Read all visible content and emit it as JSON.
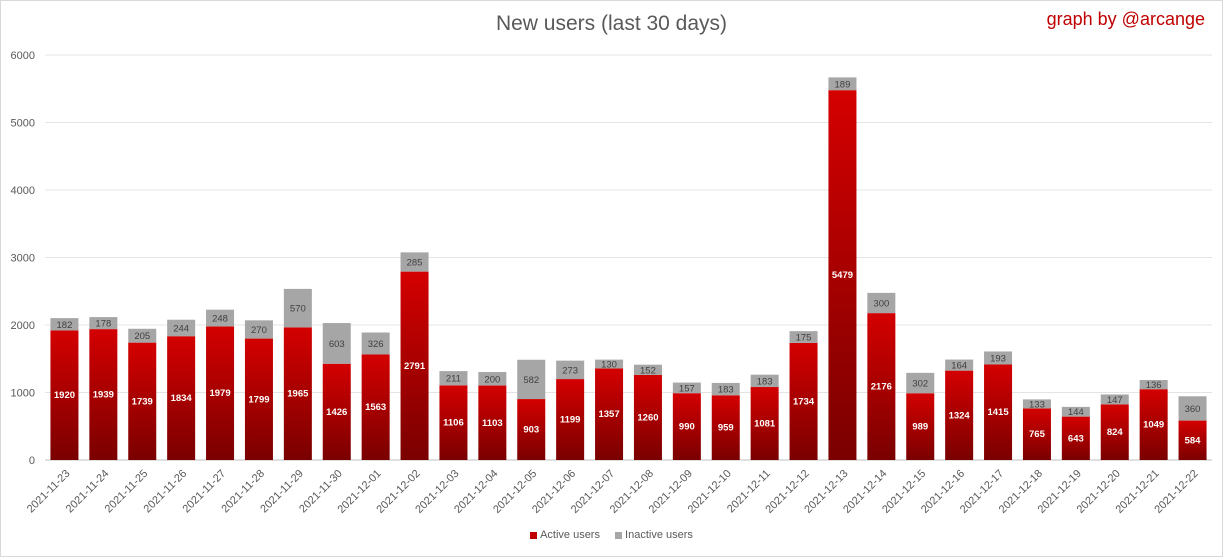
{
  "chart_data": {
    "type": "bar",
    "stacked": true,
    "title": "New users (last 30 days)",
    "credit": "graph by @arcange",
    "categories": [
      "2021-11-23",
      "2021-11-24",
      "2021-11-25",
      "2021-11-26",
      "2021-11-27",
      "2021-11-28",
      "2021-11-29",
      "2021-11-30",
      "2021-12-01",
      "2021-12-02",
      "2021-12-03",
      "2021-12-04",
      "2021-12-05",
      "2021-12-06",
      "2021-12-07",
      "2021-12-08",
      "2021-12-09",
      "2021-12-10",
      "2021-12-11",
      "2021-12-12",
      "2021-12-13",
      "2021-12-14",
      "2021-12-15",
      "2021-12-16",
      "2021-12-17",
      "2021-12-18",
      "2021-12-19",
      "2021-12-20",
      "2021-12-21",
      "2021-12-22"
    ],
    "series": [
      {
        "name": "Active users",
        "color": "#c00000",
        "values": [
          1920,
          1939,
          1739,
          1834,
          1979,
          1799,
          1965,
          1426,
          1563,
          2791,
          1106,
          1103,
          903,
          1199,
          1357,
          1260,
          990,
          959,
          1081,
          1734,
          5479,
          2176,
          989,
          1324,
          1415,
          765,
          643,
          824,
          1049,
          584
        ]
      },
      {
        "name": "Inactive users",
        "color": "#a6a6a6",
        "values": [
          182,
          178,
          205,
          244,
          248,
          270,
          570,
          603,
          326,
          285,
          211,
          200,
          582,
          273,
          130,
          152,
          157,
          183,
          183,
          175,
          189,
          300,
          302,
          164,
          193,
          133,
          144,
          147,
          136,
          360
        ]
      }
    ],
    "yticks": [
      0,
      1000,
      2000,
      3000,
      4000,
      5000,
      6000
    ],
    "ylim": [
      0,
      6000
    ],
    "xlabel": "",
    "ylabel": "",
    "grid": true,
    "legend_position": "bottom"
  }
}
